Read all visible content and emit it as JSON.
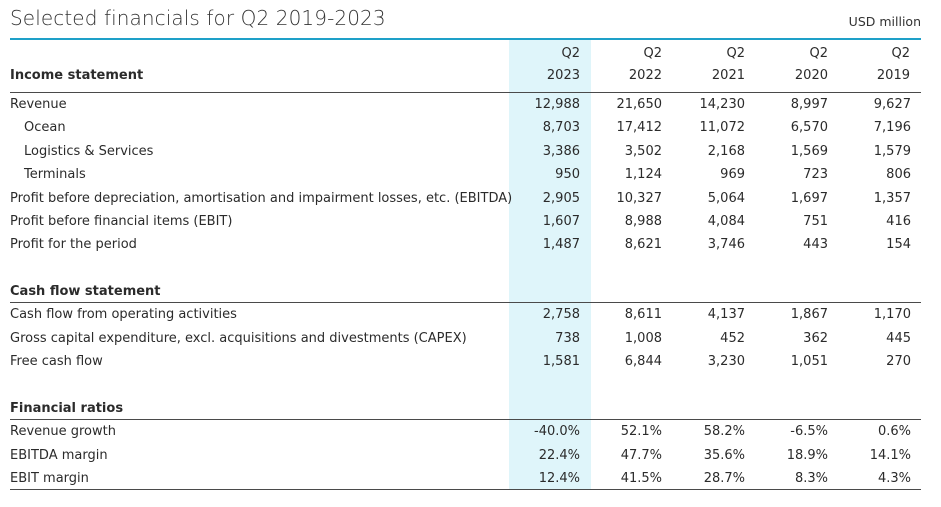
{
  "title": "Selected financials for Q2 2019-2023",
  "unit": "USD million",
  "columns": [
    {
      "q": "Q2",
      "year": "2023"
    },
    {
      "q": "Q2",
      "year": "2022"
    },
    {
      "q": "Q2",
      "year": "2021"
    },
    {
      "q": "Q2",
      "year": "2020"
    },
    {
      "q": "Q2",
      "year": "2019"
    }
  ],
  "sections": {
    "income": {
      "heading": "Income statement",
      "rows": [
        {
          "label": "Revenue",
          "values": [
            "12,988",
            "21,650",
            "14,230",
            "8,997",
            "9,627"
          ]
        },
        {
          "label": "Ocean",
          "values": [
            "8,703",
            "17,412",
            "11,072",
            "6,570",
            "7,196"
          ]
        },
        {
          "label": "Logistics & Services",
          "values": [
            "3,386",
            "3,502",
            "2,168",
            "1,569",
            "1,579"
          ]
        },
        {
          "label": "Terminals",
          "values": [
            "950",
            "1,124",
            "969",
            "723",
            "806"
          ]
        },
        {
          "label": "Profit before depreciation, amortisation and impairment losses, etc. (EBITDA)",
          "values": [
            "2,905",
            "10,327",
            "5,064",
            "1,697",
            "1,357"
          ]
        },
        {
          "label": "Profit before financial items (EBIT)",
          "values": [
            "1,607",
            "8,988",
            "4,084",
            "751",
            "416"
          ]
        },
        {
          "label": "Profit for the period",
          "values": [
            "1,487",
            "8,621",
            "3,746",
            "443",
            "154"
          ]
        }
      ]
    },
    "cashflow": {
      "heading": "Cash flow statement",
      "rows": [
        {
          "label": "Cash flow from operating activities",
          "values": [
            "2,758",
            "8,611",
            "4,137",
            "1,867",
            "1,170"
          ]
        },
        {
          "label": "Gross capital expenditure, excl. acquisitions and divestments (CAPEX)",
          "values": [
            "738",
            "1,008",
            "452",
            "362",
            "445"
          ]
        },
        {
          "label": "Free cash flow",
          "values": [
            "1,581",
            "6,844",
            "3,230",
            "1,051",
            "270"
          ]
        }
      ]
    },
    "ratios": {
      "heading": "Financial ratios",
      "rows": [
        {
          "label": "Revenue growth",
          "values": [
            "-40.0%",
            "52.1%",
            "58.2%",
            "-6.5%",
            "0.6%"
          ]
        },
        {
          "label": "EBITDA margin",
          "values": [
            "22.4%",
            "47.7%",
            "35.6%",
            "18.9%",
            "14.1%"
          ]
        },
        {
          "label": "EBIT margin",
          "values": [
            "12.4%",
            "41.5%",
            "28.7%",
            "8.3%",
            "4.3%"
          ]
        }
      ]
    }
  }
}
